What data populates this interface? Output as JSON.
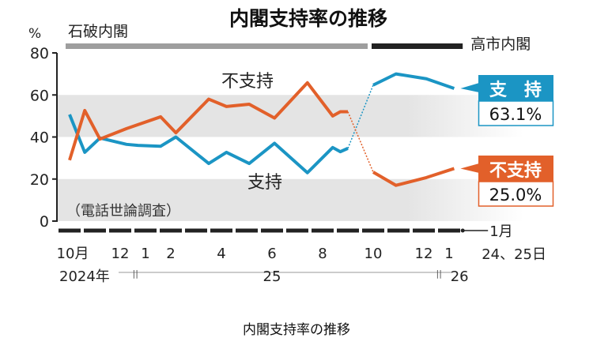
{
  "chart_data": {
    "type": "line",
    "title": "内閣支持率の推移",
    "ylabel": "%",
    "ylim": [
      0,
      80
    ],
    "yticks": [
      "0",
      "20",
      "40",
      "60",
      "80"
    ],
    "xaxis": {
      "month_ticks": [
        {
          "m": 0,
          "label": "10月"
        },
        {
          "m": 2,
          "label": "12"
        },
        {
          "m": 3,
          "label": "1"
        },
        {
          "m": 4,
          "label": "2"
        },
        {
          "m": 6,
          "label": "4"
        },
        {
          "m": 8,
          "label": "6"
        },
        {
          "m": 10,
          "label": "8"
        },
        {
          "m": 12,
          "label": "10"
        },
        {
          "m": 14,
          "label": "12"
        },
        {
          "m": 15,
          "label": "1"
        }
      ],
      "end_label_1": "1月",
      "end_label_2": "24、25日",
      "years": [
        {
          "m": 0,
          "label": "2024年"
        },
        {
          "m": 8,
          "label": "25"
        },
        {
          "m": 15.6,
          "label": "26"
        }
      ]
    },
    "cabinets": [
      {
        "name": "石破内閣",
        "from": 0,
        "to": 12,
        "color": "#9e9e9e"
      },
      {
        "name": "高市内閣",
        "from": 12,
        "to": 15.6,
        "color": "#222222"
      }
    ],
    "note": "（電話世論調査）",
    "transition_index": 15,
    "series": [
      {
        "name": "支持",
        "color": "#1b95c4",
        "x": [
          0,
          0.6,
          1.2,
          2.25,
          2.7,
          3.6,
          4.2,
          5.5,
          6.2,
          7.1,
          8.1,
          9.4,
          10.4,
          10.7,
          11.0,
          12.0,
          12.9,
          14.1,
          15.2
        ],
        "values": [
          50.7,
          32.7,
          39.5,
          36.5,
          36,
          35.6,
          40,
          27.4,
          32.7,
          27.4,
          37,
          23,
          35,
          33,
          34.6,
          64.7,
          70,
          67.7,
          63.1
        ],
        "label_in_chart": "支持",
        "callout_label": "支　持",
        "latest": "63.1%"
      },
      {
        "name": "不支持",
        "color": "#e2602a",
        "x": [
          0,
          0.6,
          1.2,
          2.25,
          3.6,
          4.2,
          5.5,
          6.2,
          7.1,
          8.1,
          9.4,
          10.4,
          10.7,
          11.0,
          12.0,
          12.9,
          14.1,
          15.2
        ],
        "values": [
          29,
          52.6,
          39,
          44,
          49.6,
          42,
          58,
          54.5,
          55.6,
          49,
          65.8,
          50,
          52,
          52,
          23.3,
          17,
          20.7,
          25
        ],
        "label_in_chart": "不支持",
        "callout_label": "不支持",
        "latest": "25.0%"
      }
    ]
  },
  "caption": "内閣支持率の推移"
}
